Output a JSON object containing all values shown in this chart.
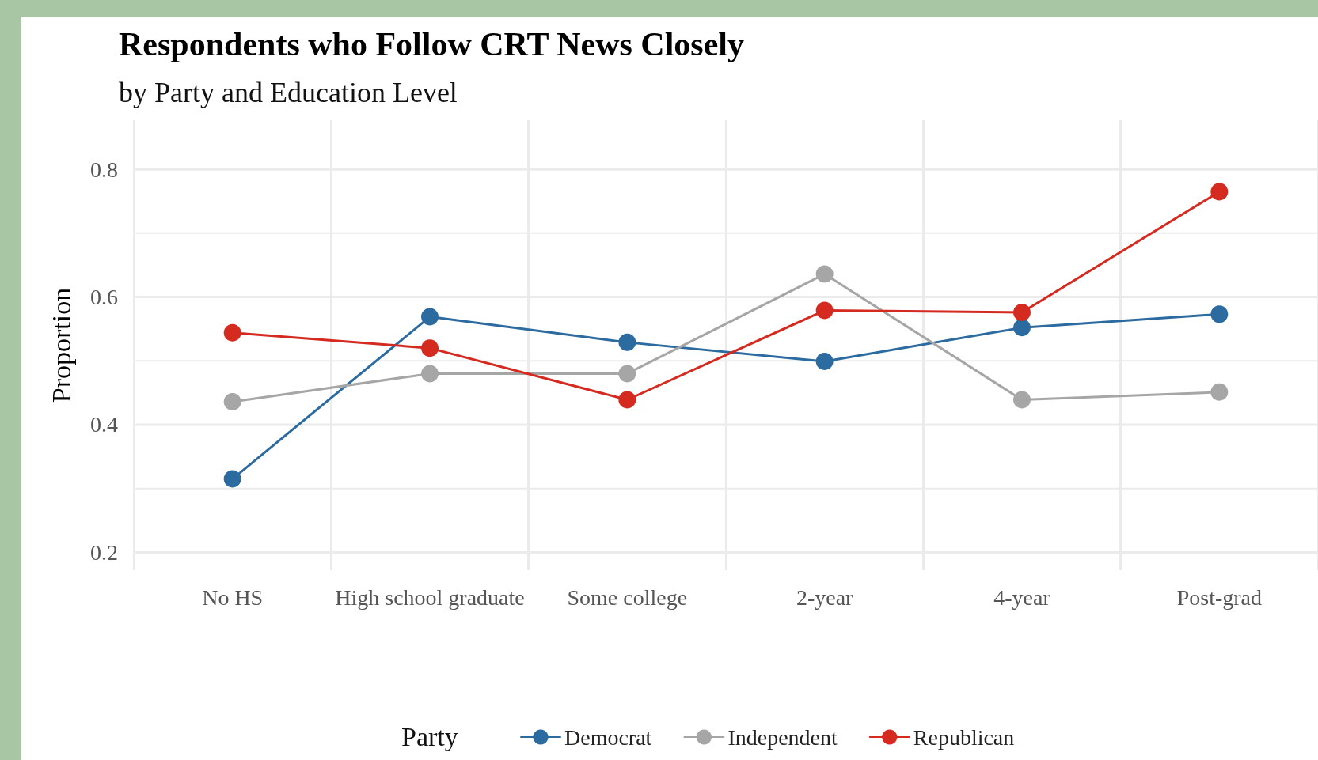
{
  "chart_data": {
    "type": "line",
    "title": "Respondents who Follow CRT News Closely",
    "subtitle": "by Party and Education Level",
    "ylabel": "Proportion",
    "legend_title": "Party",
    "categories": [
      "No HS",
      "High school graduate",
      "Some college",
      "2-year",
      "4-year",
      "Post-grad"
    ],
    "series": [
      {
        "name": "Democrat",
        "color": "#2c6ba0",
        "values": [
          0.315,
          0.569,
          0.529,
          0.499,
          0.552,
          0.573
        ]
      },
      {
        "name": "Independent",
        "color": "#a6a6a6",
        "values": [
          0.436,
          0.48,
          0.48,
          0.636,
          0.439,
          0.451
        ]
      },
      {
        "name": "Republican",
        "color": "#d42a20",
        "values": [
          0.544,
          0.52,
          0.439,
          0.579,
          0.576,
          0.765
        ]
      }
    ],
    "ylim": [
      0.172,
      0.877
    ],
    "yticks": [
      0.2,
      {
        "value": 0.3,
        "label": null
      },
      0.4,
      {
        "value": 0.5,
        "label": null
      },
      0.6,
      {
        "value": 0.7,
        "label": null
      },
      0.8
    ],
    "grid": true,
    "legend": "bottom",
    "marker": "circle",
    "line_style": "solid"
  }
}
